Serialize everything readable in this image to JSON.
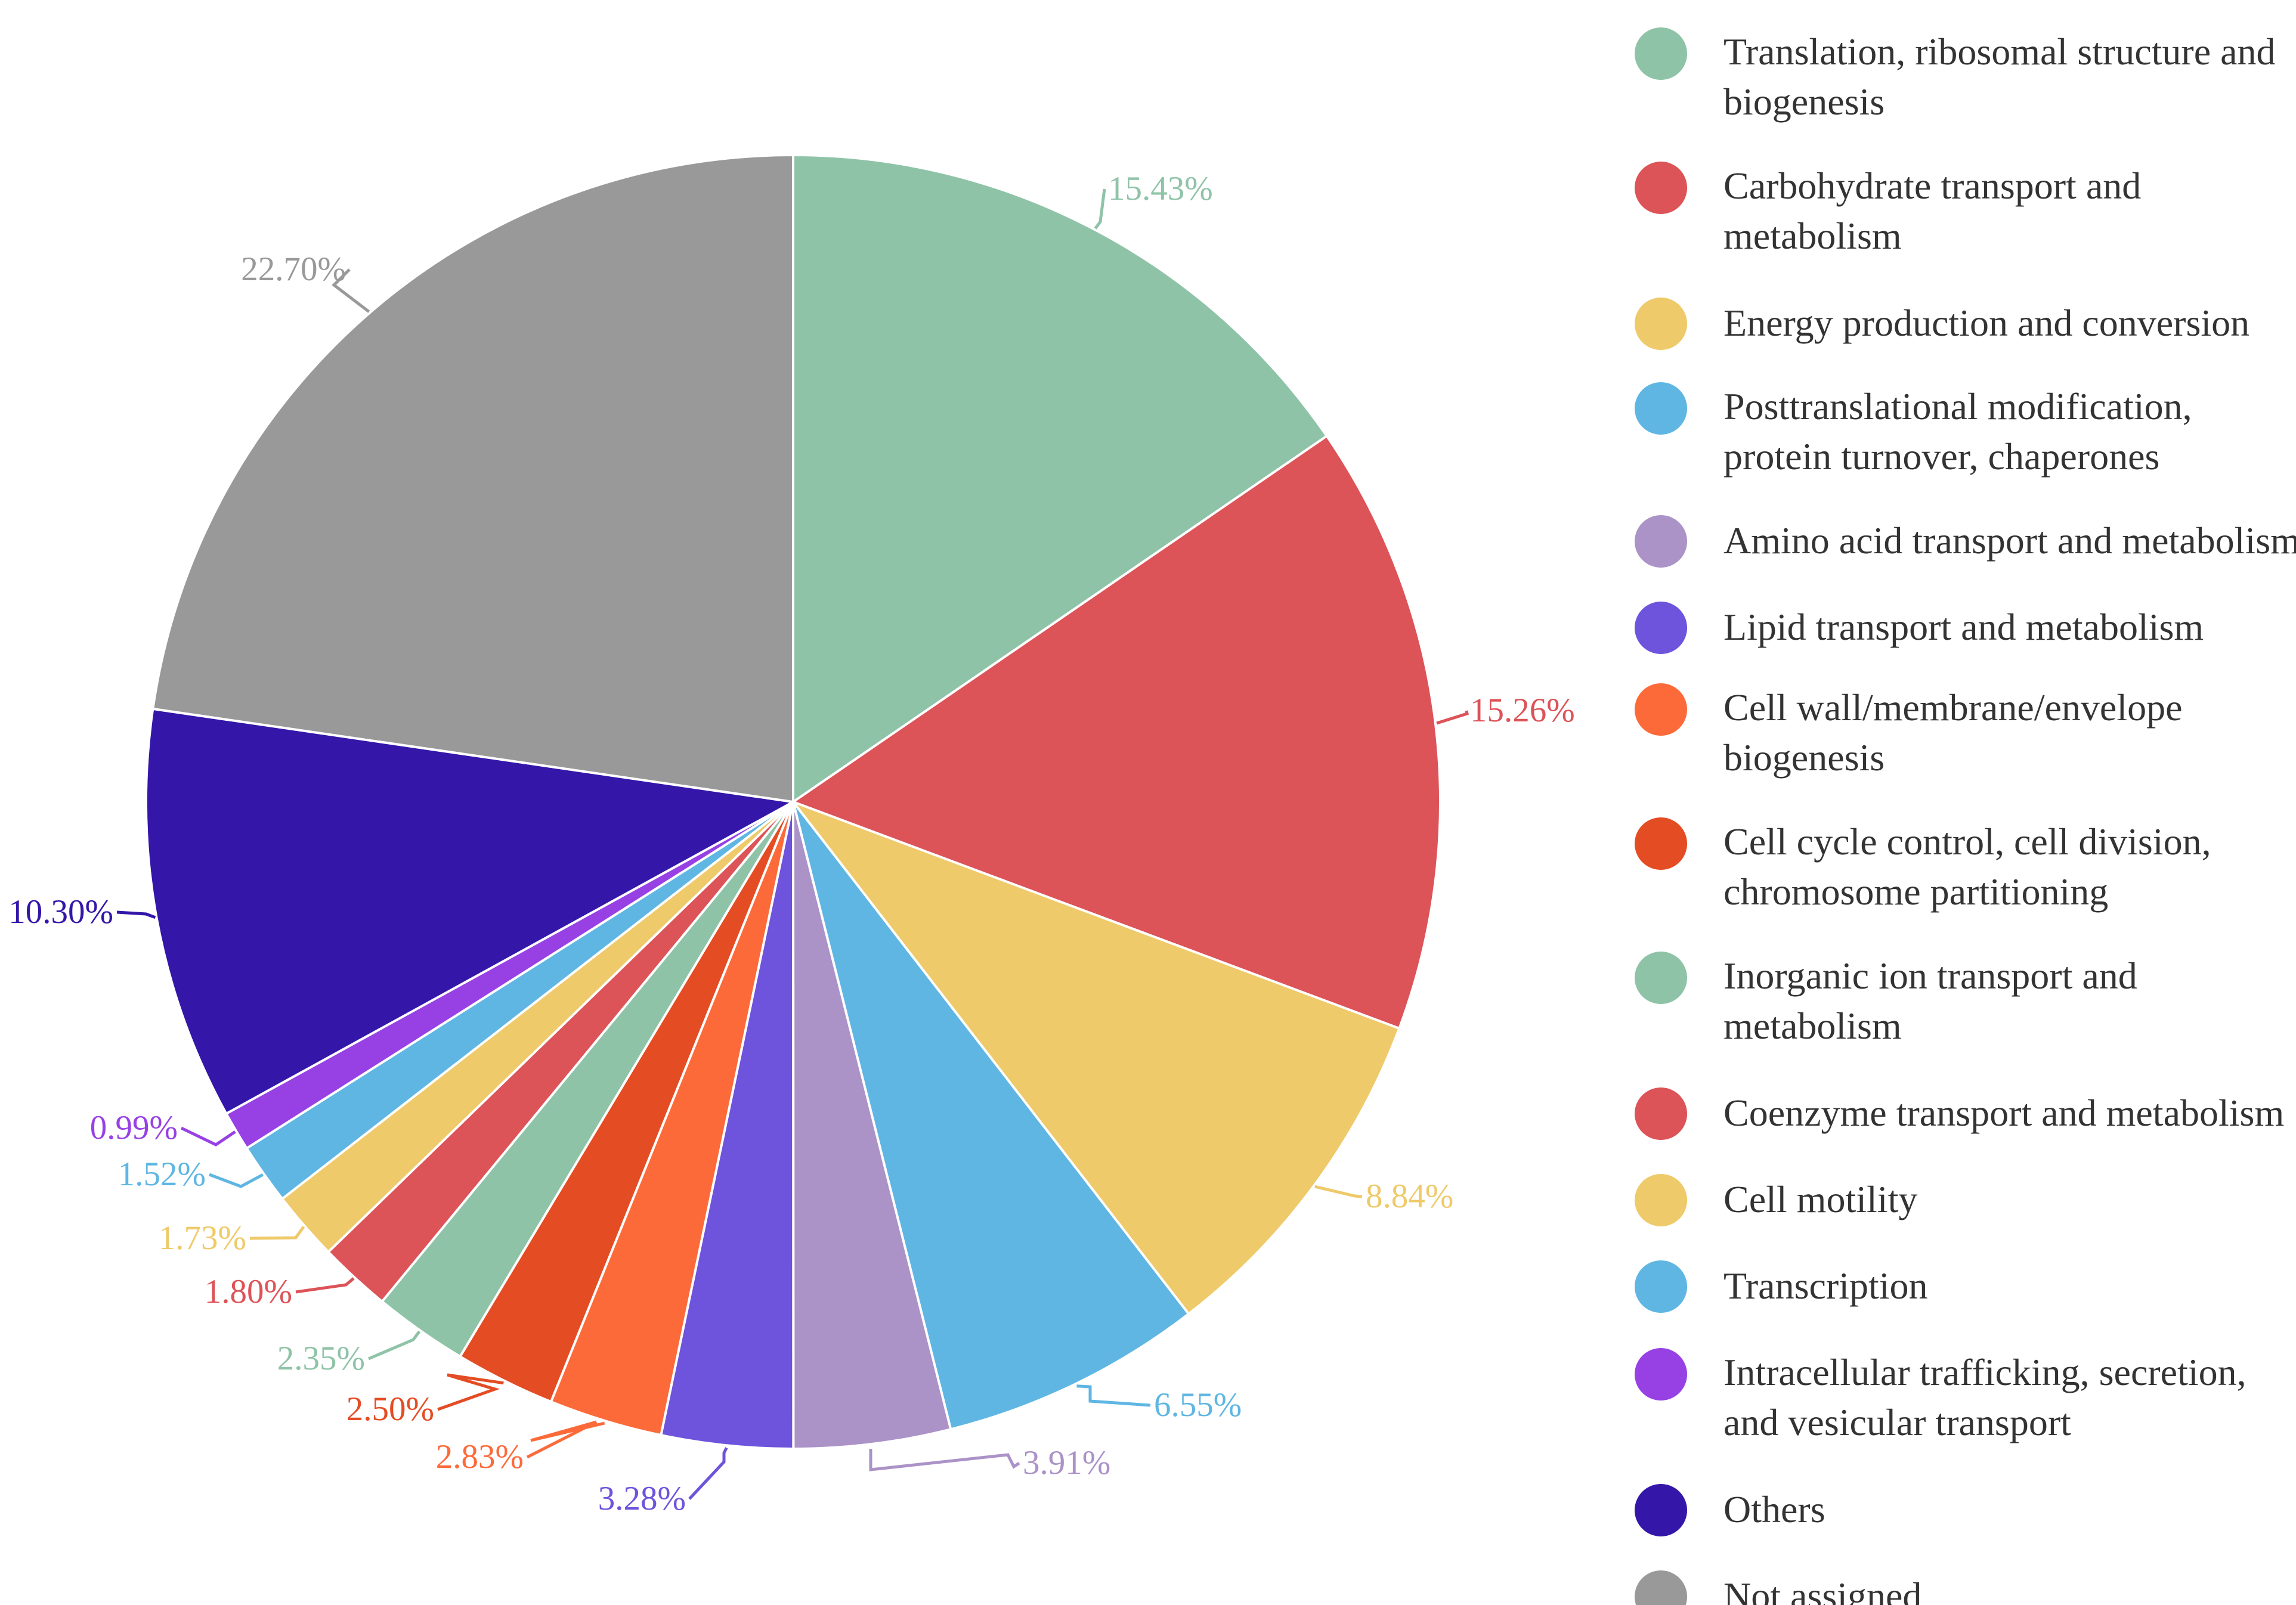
{
  "chart_data": {
    "type": "pie",
    "title": "",
    "legend_position": "right",
    "start_angle_deg": 0,
    "direction": "clockwise",
    "slices": [
      {
        "label": "Translation, ribosomal structure and biogenesis",
        "value": 15.43,
        "display": "15.43%",
        "color": "#8fc3a7"
      },
      {
        "label": "Carbohydrate transport and metabolism",
        "value": 15.26,
        "display": "15.26%",
        "color": "#dc5358"
      },
      {
        "label": "Energy production and conversion",
        "value": 8.84,
        "display": "8.84%",
        "color": "#efca6a"
      },
      {
        "label": "Posttranslational modification, protein turnover, chaperones",
        "value": 6.55,
        "display": "6.55%",
        "color": "#5fb6e3"
      },
      {
        "label": "Amino acid transport and metabolism",
        "value": 3.91,
        "display": "3.91%",
        "color": "#ab92c7"
      },
      {
        "label": "Lipid transport and metabolism",
        "value": 3.28,
        "display": "3.28%",
        "color": "#6e53dc"
      },
      {
        "label": "Cell wall/membrane/envelope biogenesis",
        "value": 2.83,
        "display": "2.83%",
        "color": "#fd6a3a"
      },
      {
        "label": "Cell cycle control, cell division, chromosome partitioning",
        "value": 2.5,
        "display": "2.50%",
        "color": "#e44c23"
      },
      {
        "label": "Inorganic ion transport and metabolism",
        "value": 2.35,
        "display": "2.35%",
        "color": "#8fc3a7"
      },
      {
        "label": "Coenzyme transport and metabolism",
        "value": 1.8,
        "display": "1.80%",
        "color": "#dc5358"
      },
      {
        "label": "Cell motility",
        "value": 1.73,
        "display": "1.73%",
        "color": "#efca6a"
      },
      {
        "label": "Transcription",
        "value": 1.52,
        "display": "1.52%",
        "color": "#5fb6e3"
      },
      {
        "label": "Intracellular trafficking, secretion, and vesicular transport",
        "value": 0.99,
        "display": "0.99%",
        "color": "#9741e5"
      },
      {
        "label": "Others",
        "value": 10.3,
        "display": "10.30%",
        "color": "#3416a9"
      },
      {
        "label": "Not assigned",
        "value": 22.7,
        "display": "22.70%",
        "color": "#999999"
      }
    ]
  },
  "legend": [
    {
      "lines": [
        "Translation, ribosomal structure and",
        "biogenesis"
      ],
      "color": "#8fc3a7"
    },
    {
      "lines": [
        "Carbohydrate transport and",
        "metabolism"
      ],
      "color": "#dc5358"
    },
    {
      "lines": [
        "Energy production and conversion"
      ],
      "color": "#efca6a"
    },
    {
      "lines": [
        "Posttranslational modification,",
        "protein turnover, chaperones"
      ],
      "color": "#5fb6e3"
    },
    {
      "lines": [
        "Amino acid transport and metabolism"
      ],
      "color": "#ab92c7"
    },
    {
      "lines": [
        "Lipid transport and metabolism"
      ],
      "color": "#6e53dc"
    },
    {
      "lines": [
        "Cell wall/membrane/envelope",
        "biogenesis"
      ],
      "color": "#fd6a3a"
    },
    {
      "lines": [
        "Cell cycle control, cell division,",
        "chromosome partitioning"
      ],
      "color": "#e44c23"
    },
    {
      "lines": [
        "Inorganic ion transport and",
        "metabolism"
      ],
      "color": "#8fc3a7"
    },
    {
      "lines": [
        "Coenzyme transport and metabolism"
      ],
      "color": "#dc5358"
    },
    {
      "lines": [
        "Cell motility"
      ],
      "color": "#efca6a"
    },
    {
      "lines": [
        "Transcription"
      ],
      "color": "#5fb6e3"
    },
    {
      "lines": [
        "Intracellular trafficking, secretion,",
        "and vesicular transport"
      ],
      "color": "#9741e5"
    },
    {
      "lines": [
        "Others"
      ],
      "color": "#3416a9"
    },
    {
      "lines": [
        "Not assigned"
      ],
      "color": "#999999"
    }
  ]
}
